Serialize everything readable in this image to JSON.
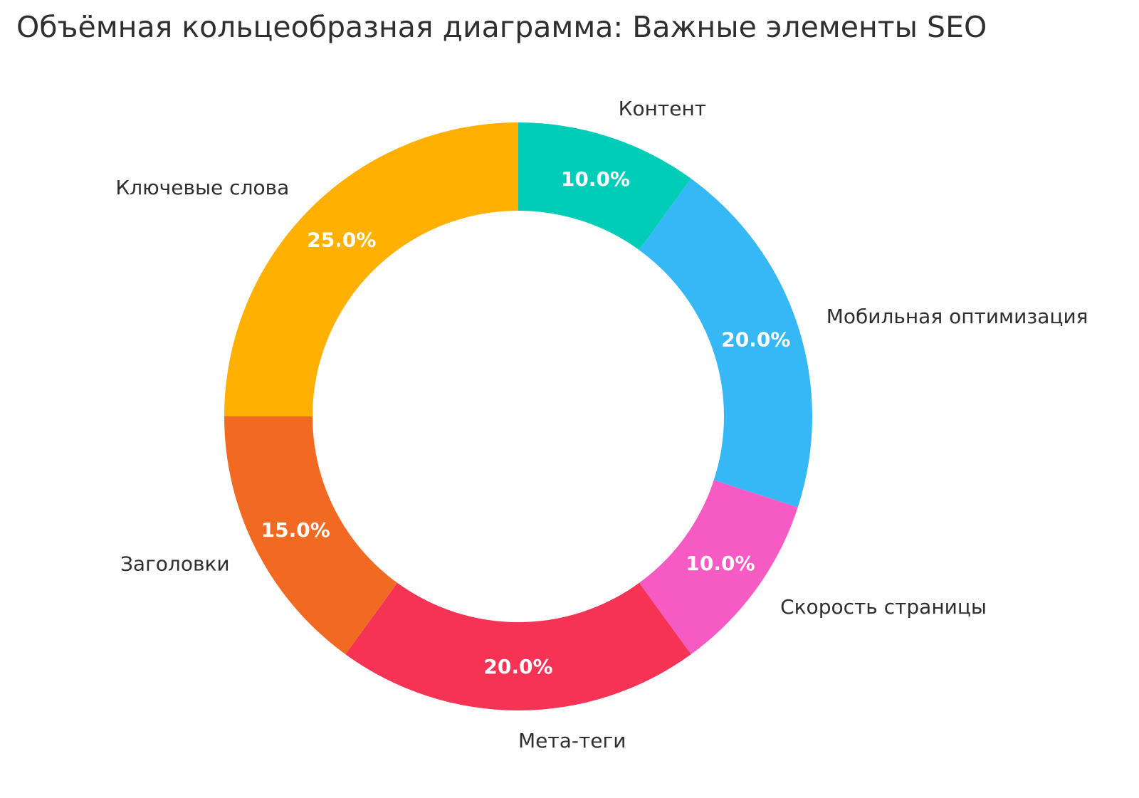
{
  "page": {
    "background": "#ffffff"
  },
  "chart_data": {
    "type": "pie",
    "subtype": "donut",
    "title": "Объёмная кольцеобразная диаграмма: Важные элементы SEO",
    "hole": 0.7,
    "start_angle_deg": 0,
    "direction": "clockwise",
    "legend": "none",
    "labels_position": "outside",
    "categories": [
      "Контент",
      "Мобильная оптимизация",
      "Скорость страницы",
      "Мета-теги",
      "Заголовки",
      "Ключевые слова"
    ],
    "values": [
      10,
      20,
      10,
      20,
      15,
      25
    ],
    "percent_labels": [
      "10.0%",
      "20.0%",
      "10.0%",
      "20.0%",
      "15.0%",
      "25.0%"
    ],
    "colors": [
      "#00CDB8",
      "#35B8F5",
      "#F65BC4",
      "#F43355",
      "#F26A21",
      "#FFB000"
    ],
    "title_color": "#2f2f2f",
    "category_label_color": "#2e2e2e",
    "percent_label_color": "#ffffff"
  }
}
